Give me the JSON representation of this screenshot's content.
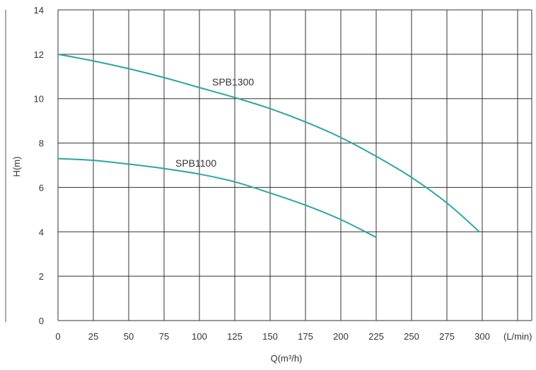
{
  "chart_data": {
    "type": "line",
    "xlabel": "Q(m³/h)",
    "xunit": "(L/min)",
    "ylabel": "H(m)",
    "xlim": [
      0,
      300
    ],
    "ylim": [
      0,
      14
    ],
    "x_ticks": [
      "0",
      "25",
      "50",
      "75",
      "100",
      "125",
      "150",
      "175",
      "200",
      "225",
      "250",
      "275",
      "300"
    ],
    "y_ticks": [
      "0",
      "2",
      "4",
      "6",
      "8",
      "10",
      "12",
      "14"
    ],
    "grid": true,
    "line_color": "#2aa6a6",
    "series": [
      {
        "name": "SPB1300",
        "x": [
          0,
          25,
          50,
          75,
          100,
          125,
          150,
          175,
          200,
          225,
          250,
          275,
          298
        ],
        "y": [
          12.0,
          11.7,
          11.35,
          10.95,
          10.5,
          10.05,
          9.55,
          8.95,
          8.25,
          7.4,
          6.45,
          5.3,
          4.0
        ]
      },
      {
        "name": "SPB1100",
        "x": [
          0,
          25,
          50,
          75,
          100,
          125,
          150,
          175,
          200,
          225
        ],
        "y": [
          7.3,
          7.22,
          7.05,
          6.85,
          6.6,
          6.25,
          5.75,
          5.2,
          4.55,
          3.75
        ]
      }
    ]
  }
}
